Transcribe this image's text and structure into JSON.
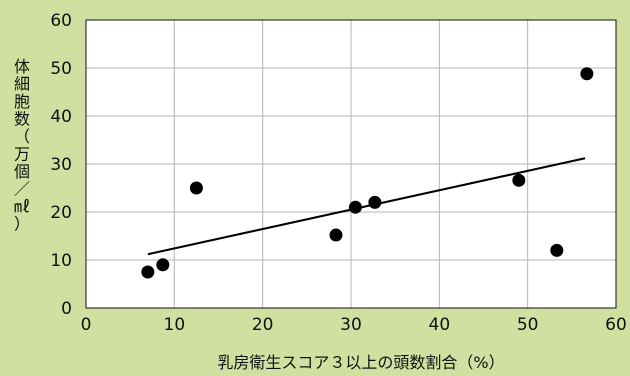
{
  "colors": {
    "background": "#cfe0a0",
    "plot_area": "#ffffff",
    "grid": "#b4b4b4",
    "marker": "#000000",
    "trendline": "#000000"
  },
  "chart_data": {
    "type": "scatter",
    "title": "",
    "xlabel": "乳房衛生スコア３以上の頭数割合（%）",
    "ylabel": "体細胞数（万個／㎖）",
    "xlim": [
      0,
      60
    ],
    "ylim": [
      0,
      60
    ],
    "xticks": [
      0,
      10,
      20,
      30,
      40,
      50,
      60
    ],
    "yticks": [
      0,
      10,
      20,
      30,
      40,
      50,
      60
    ],
    "grid": true,
    "legend": "none",
    "points": [
      {
        "x": 7,
        "y": 7.5
      },
      {
        "x": 8.7,
        "y": 9
      },
      {
        "x": 12.5,
        "y": 25
      },
      {
        "x": 28.3,
        "y": 15.2
      },
      {
        "x": 30.5,
        "y": 21
      },
      {
        "x": 32.7,
        "y": 22
      },
      {
        "x": 49,
        "y": 26.6
      },
      {
        "x": 53.3,
        "y": 12
      },
      {
        "x": 56.7,
        "y": 48.8
      }
    ],
    "trendline": {
      "x": [
        7,
        56.5
      ],
      "y": [
        11.2,
        31.2
      ]
    }
  }
}
